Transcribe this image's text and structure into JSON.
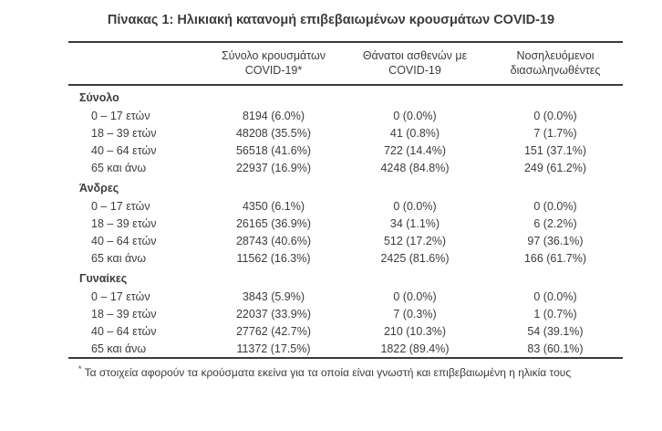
{
  "title": "Πίνακας 1: Ηλικιακή κατανομή επιβεβαιωμένων κρουσμάτων COVID-19",
  "table": {
    "columns": [
      {
        "line1": "Σύνολο κρουσμάτων",
        "line2": "COVID-19*"
      },
      {
        "line1": "Θάνατοι ασθενών με",
        "line2": "COVID-19"
      },
      {
        "line1": "Νοσηλευόμενοι",
        "line2": "διασωληνωθέντες"
      }
    ],
    "sections": [
      {
        "label": "Σύνολο",
        "rows": [
          {
            "label": "0 – 17 ετών",
            "cases": "8194 (6.0%)",
            "deaths": "0 (0.0%)",
            "intubated": "0 (0.0%)"
          },
          {
            "label": "18 – 39 ετών",
            "cases": "48208 (35.5%)",
            "deaths": "41 (0.8%)",
            "intubated": "7 (1.7%)"
          },
          {
            "label": "40 – 64 ετών",
            "cases": "56518 (41.6%)",
            "deaths": "722 (14.4%)",
            "intubated": "151 (37.1%)"
          },
          {
            "label": "65 και άνω",
            "cases": "22937 (16.9%)",
            "deaths": "4248 (84.8%)",
            "intubated": "249 (61.2%)"
          }
        ]
      },
      {
        "label": "Άνδρες",
        "rows": [
          {
            "label": "0 – 17 ετών",
            "cases": "4350 (6.1%)",
            "deaths": "0 (0.0%)",
            "intubated": "0 (0.0%)"
          },
          {
            "label": "18 – 39 ετών",
            "cases": "26165 (36.9%)",
            "deaths": "34 (1.1%)",
            "intubated": "6 (2.2%)"
          },
          {
            "label": "40 – 64 ετών",
            "cases": "28743 (40.6%)",
            "deaths": "512 (17.2%)",
            "intubated": "97 (36.1%)"
          },
          {
            "label": "65 και άνω",
            "cases": "11562 (16.3%)",
            "deaths": "2425 (81.6%)",
            "intubated": "166 (61.7%)"
          }
        ]
      },
      {
        "label": "Γυναίκες",
        "rows": [
          {
            "label": "0 – 17 ετών",
            "cases": "3843 (5.9%)",
            "deaths": "0 (0.0%)",
            "intubated": "0 (0.0%)"
          },
          {
            "label": "18 – 39 ετών",
            "cases": "22037 (33.9%)",
            "deaths": "7 (0.3%)",
            "intubated": "1 (0.7%)"
          },
          {
            "label": "40 – 64 ετών",
            "cases": "27762 (42.7%)",
            "deaths": "210 (10.3%)",
            "intubated": "54 (39.1%)"
          },
          {
            "label": "65 και άνω",
            "cases": "11372 (17.5%)",
            "deaths": "1822 (89.4%)",
            "intubated": "83 (60.1%)"
          }
        ]
      }
    ],
    "footnote_marker": "*",
    "footnote": "Τα στοιχεία αφορούν τα κρούσματα εκείνα για τα οποία είναι γνωστή και επιβεβαιωμένη η ηλικία τους"
  },
  "colors": {
    "text": "#3c3c3e",
    "rule": "#3a3a3a",
    "background": "#ffffff"
  }
}
